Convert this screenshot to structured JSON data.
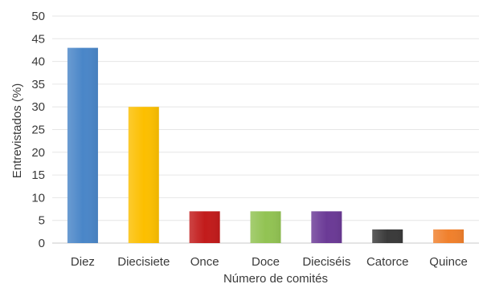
{
  "chart_data": {
    "type": "bar",
    "categories": [
      "Diez",
      "Diecisiete",
      "Once",
      "Doce",
      "Dieciséis",
      "Catorce",
      "Quince"
    ],
    "values": [
      43,
      30,
      7,
      7,
      7,
      3,
      3
    ],
    "colors": [
      "#4a86c8",
      "#fcbf00",
      "#c21b1b",
      "#92c353",
      "#6b3a96",
      "#3a3a3a",
      "#f0802c"
    ],
    "xlabel": "Número de comités",
    "ylabel": "Entrevistados (%)",
    "ylim": [
      0,
      50
    ],
    "yticks": [
      0,
      5,
      10,
      15,
      20,
      25,
      30,
      35,
      40,
      45,
      50
    ],
    "grid": true,
    "legend": "none"
  }
}
